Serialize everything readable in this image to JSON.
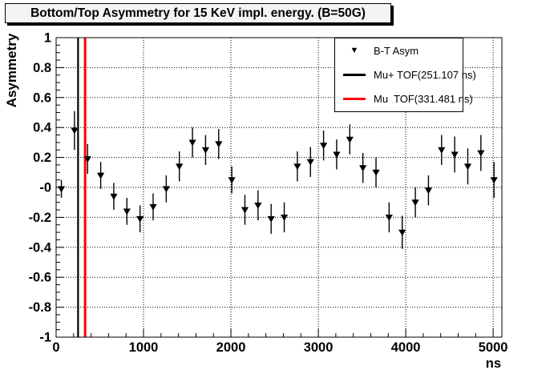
{
  "chart_data": {
    "type": "scatter",
    "title": "Bottom/Top Asymmetry for 15 KeV impl. energy. (B=50G)",
    "xlabel": "ns",
    "ylabel": "Asymmetry",
    "xlim": [
      0,
      5100
    ],
    "ylim": [
      -1,
      1
    ],
    "grid": {
      "style": "dotted",
      "x_lines": [
        1000,
        2000,
        3000,
        4000,
        5000
      ],
      "y_lines": [
        -0.8,
        -0.6,
        -0.4,
        -0.2,
        0,
        0.2,
        0.4,
        0.6,
        0.8
      ]
    },
    "x_ticks": {
      "values": [
        0,
        1000,
        2000,
        3000,
        4000,
        5000
      ],
      "labels": [
        "0",
        "1000",
        "2000",
        "3000",
        "4000",
        "5000"
      ],
      "minor_step": 200
    },
    "y_ticks": {
      "values": [
        1,
        0.8,
        0.6,
        0.4,
        0.2,
        0,
        -0.2,
        -0.4,
        -0.6,
        -0.8,
        -1
      ],
      "labels": [
        "1",
        "0.8",
        "0.6",
        "0.4",
        "0.2",
        "-0",
        "-0.2",
        "-0.4",
        "-0.6",
        "-0.8",
        "-1"
      ],
      "minor_step": 0.05
    },
    "series": [
      {
        "name": "B-T Asym",
        "marker": "filled-triangle-down",
        "color": "#000000",
        "x": [
          60,
          210,
          360,
          510,
          660,
          810,
          960,
          1110,
          1260,
          1410,
          1560,
          1710,
          1860,
          2010,
          2160,
          2310,
          2460,
          2610,
          2760,
          2910,
          3060,
          3210,
          3360,
          3510,
          3660,
          3810,
          3960,
          4110,
          4260,
          4410,
          4560,
          4710,
          4860,
          5010
        ],
        "y": [
          -0.01,
          0.38,
          0.19,
          0.08,
          -0.06,
          -0.16,
          -0.21,
          -0.13,
          -0.01,
          0.14,
          0.3,
          0.25,
          0.29,
          0.05,
          -0.15,
          -0.12,
          -0.21,
          -0.2,
          0.14,
          0.17,
          0.28,
          0.22,
          0.32,
          0.13,
          0.1,
          -0.2,
          -0.3,
          -0.1,
          -0.02,
          0.25,
          0.22,
          0.14,
          0.23,
          0.05
        ],
        "yerr": [
          0.06,
          0.13,
          0.1,
          0.09,
          0.09,
          0.09,
          0.09,
          0.09,
          0.09,
          0.1,
          0.1,
          0.1,
          0.1,
          0.09,
          0.1,
          0.1,
          0.1,
          0.1,
          0.1,
          0.1,
          0.1,
          0.1,
          0.1,
          0.1,
          0.1,
          0.1,
          0.11,
          0.1,
          0.1,
          0.1,
          0.12,
          0.12,
          0.12,
          0.12
        ]
      }
    ],
    "vlines": [
      {
        "name": "mu-plus-tof",
        "x": 251.107,
        "color": "#000000",
        "width": 2.2,
        "label": "Mu+ TOF(251.107 ns)"
      },
      {
        "name": "mu-tof",
        "x": 331.481,
        "color": "#ff0000",
        "width": 3,
        "label": "Mu  TOF(331.481 ns)"
      }
    ],
    "legend": {
      "position": "top-right",
      "entries": [
        {
          "symbol": "triangle-down",
          "color": "#000000",
          "label": "B-T Asym"
        },
        {
          "symbol": "line",
          "color": "#000000",
          "label": "Mu+ TOF(251.107 ns)"
        },
        {
          "symbol": "line",
          "color": "#ff0000",
          "label": "Mu  TOF(331.481 ns)"
        }
      ],
      "triangle_glyph": "▼"
    },
    "colors": {
      "marker": "#000000",
      "frame": "#000000",
      "grid": "#000000",
      "title_bg": "#f4f4f4",
      "plot_bg": "#ffffff"
    }
  }
}
